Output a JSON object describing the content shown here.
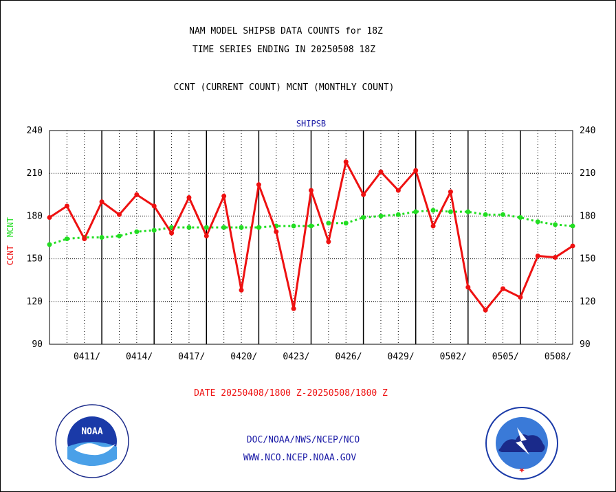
{
  "chart_data": {
    "type": "line",
    "title": "NAM MODEL SHIPSB DATA COUNTS for 18Z",
    "subtitle": "TIME SERIES ENDING IN 20250508 18Z",
    "description_line": "CCNT (CURRENT COUNT) MCNT (MONTHLY COUNT)",
    "panel_label": "SHIPSB",
    "ylabel_ccnt": "CCNT",
    "ylabel_mcnt": "MCNT",
    "xlabel": "DATE 20250408/1800 Z-20250508/1800 Z",
    "ylim": [
      90,
      240
    ],
    "yticks": [
      "90",
      "120",
      "150",
      "180",
      "210",
      "240"
    ],
    "xticks": [
      "0411/",
      "0414/",
      "0417/",
      "0420/",
      "0423/",
      "0426/",
      "0429/",
      "0502/",
      "0505/",
      "0508/"
    ],
    "x": [
      "0408",
      "0409",
      "0410",
      "0411",
      "0412",
      "0413",
      "0414",
      "0415",
      "0416",
      "0417",
      "0418",
      "0419",
      "0420",
      "0421",
      "0422",
      "0423",
      "0424",
      "0425",
      "0426",
      "0427",
      "0428",
      "0429",
      "0430",
      "0501",
      "0502",
      "0503",
      "0504",
      "0505",
      "0506",
      "0507",
      "0508"
    ],
    "series": [
      {
        "name": "CCNT",
        "color": "#ee1111",
        "values": [
          179,
          187,
          164,
          190,
          181,
          195,
          187,
          168,
          193,
          166,
          194,
          128,
          202,
          169,
          115,
          198,
          162,
          218,
          195,
          211,
          198,
          212,
          173,
          197,
          130,
          114,
          129,
          123,
          152,
          151,
          159
        ]
      },
      {
        "name": "MCNT",
        "color": "#22dd22",
        "values": [
          160,
          164,
          165,
          165,
          166,
          169,
          170,
          172,
          172,
          172,
          172,
          172,
          172,
          173,
          173,
          173,
          175,
          175,
          179,
          180,
          181,
          183,
          184,
          183,
          183,
          181,
          181,
          179,
          176,
          174,
          173
        ]
      }
    ],
    "grid": true
  },
  "footer": {
    "line1": "DOC/NOAA/NWS/NCEP/NCO",
    "line2": "WWW.NCO.NCEP.NOAA.GOV"
  },
  "logos": {
    "left": "NOAA",
    "right": "NATIONAL WEATHER SERVICE"
  }
}
